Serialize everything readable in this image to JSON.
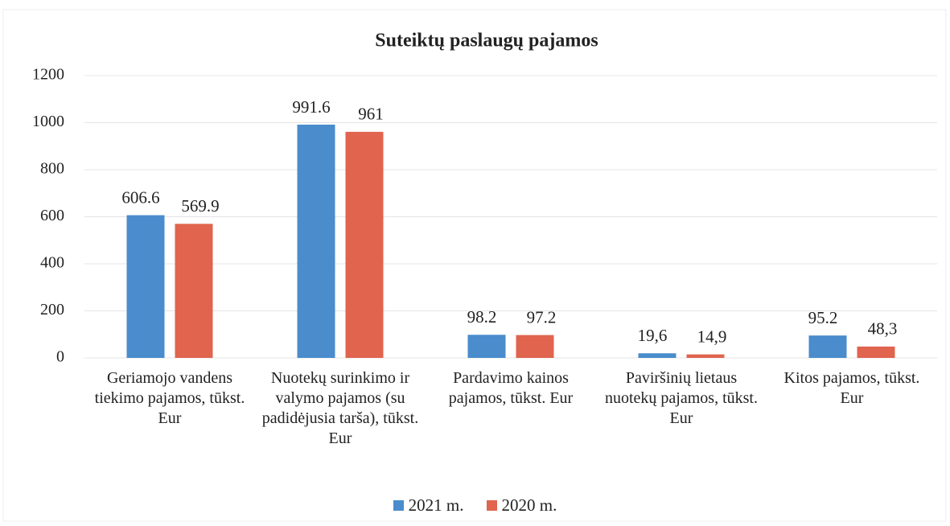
{
  "chart_data": {
    "type": "bar",
    "title": "Suteiktų paslaugų pajamos",
    "categories": [
      "Geriamojo vandens tiekimo pajamos, tūkst. Eur",
      "Nuotekų surinkimo ir valymo pajamos (su padidėjusia tarša), tūkst. Eur",
      "Pardavimo kainos pajamos, tūkst. Eur",
      "Paviršinių lietaus nuotekų pajamos, tūkst. Eur",
      "Kitos pajamos, tūkst. Eur"
    ],
    "series": [
      {
        "name": "2021 m.",
        "color": "#4a8ccc",
        "values": [
          606.6,
          991.6,
          98.2,
          19.6,
          95.2
        ],
        "value_labels": [
          "606.6",
          "991.6",
          "98.2",
          "19,6",
          "95.2"
        ]
      },
      {
        "name": "2020 m.",
        "color": "#e0644e",
        "values": [
          569.9,
          961,
          97.2,
          14.9,
          48.3
        ],
        "value_labels": [
          "569.9",
          "961",
          "97.2",
          "14,9",
          "48,3"
        ]
      }
    ],
    "ylim": [
      0,
      1200
    ],
    "yticks": [
      0,
      200,
      400,
      600,
      800,
      1000,
      1200
    ],
    "grid": true,
    "legend": "bottom"
  }
}
